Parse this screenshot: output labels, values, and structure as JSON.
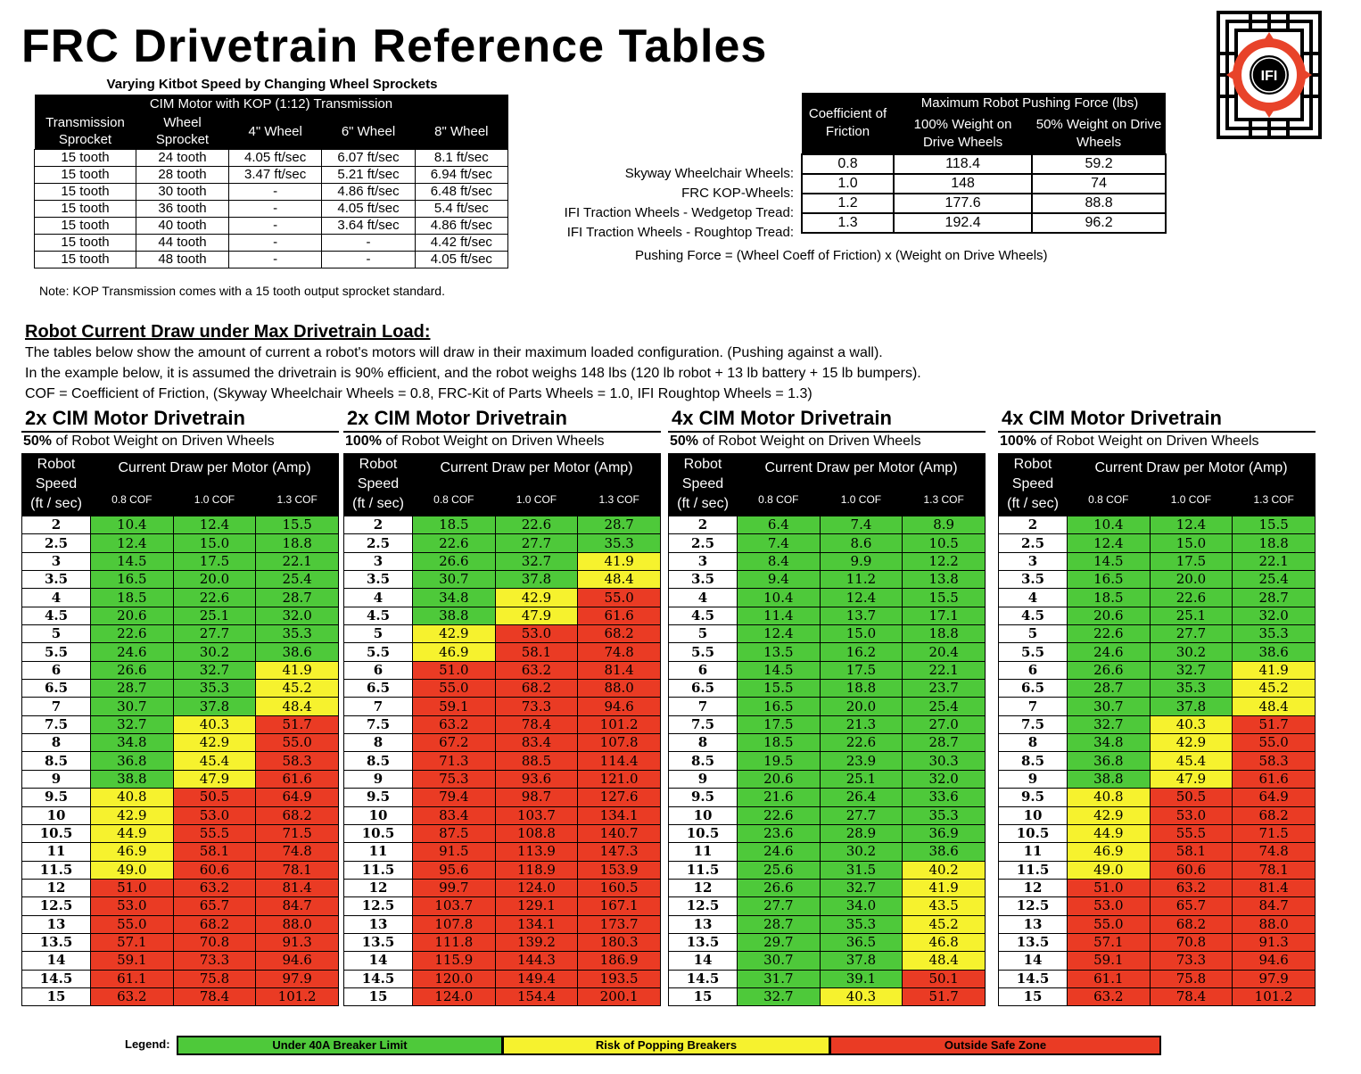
{
  "title": "FRC Drivetrain Reference Tables",
  "logo": {
    "text": "IFI",
    "icon": "ifi-logo-icon",
    "colors": {
      "ring": "#e8432a",
      "frame": "#000000"
    }
  },
  "sprocket": {
    "title": "Varying Kitbot Speed by Changing Wheel Sprockets",
    "caption": "CIM Motor with KOP (1:12) Transmission",
    "headers": [
      "Transmission Sprocket",
      "Wheel Sprocket",
      "4\" Wheel",
      "6\" Wheel",
      "8\" Wheel"
    ],
    "rows": [
      [
        "15 tooth",
        "24 tooth",
        "4.05 ft/sec",
        "6.07 ft/sec",
        "8.1 ft/sec"
      ],
      [
        "15 tooth",
        "28 tooth",
        "3.47 ft/sec",
        "5.21 ft/sec",
        "6.94 ft/sec"
      ],
      [
        "15 tooth",
        "30 tooth",
        "-",
        "4.86 ft/sec",
        "6.48 ft/sec"
      ],
      [
        "15 tooth",
        "36 tooth",
        "-",
        "4.05 ft/sec",
        "5.4 ft/sec"
      ],
      [
        "15 tooth",
        "40 tooth",
        "-",
        "3.64 ft/sec",
        "4.86 ft/sec"
      ],
      [
        "15 tooth",
        "44 tooth",
        "-",
        "-",
        "4.42 ft/sec"
      ],
      [
        "15 tooth",
        "48 tooth",
        "-",
        "-",
        "4.05 ft/sec"
      ]
    ],
    "note": "Note: KOP Transmission comes with a 15 tooth output sprocket standard."
  },
  "pushing": {
    "cof_header": "Coefficient of Friction",
    "group_header": "Maximum Robot Pushing Force (lbs)",
    "col100": "100% Weight on Drive Wheels",
    "col50": "50% Weight on Drive Wheels",
    "rows": [
      {
        "label": "Skyway Wheelchair Wheels:",
        "cof": "0.8",
        "f100": "118.4",
        "f50": "59.2"
      },
      {
        "label": "FRC KOP-Wheels:",
        "cof": "1.0",
        "f100": "148",
        "f50": "74"
      },
      {
        "label": "IFI Traction Wheels - Wedgetop Tread:",
        "cof": "1.2",
        "f100": "177.6",
        "f50": "88.8"
      },
      {
        "label": "IFI Traction Wheels - Roughtop Tread:",
        "cof": "1.3",
        "f100": "192.4",
        "f50": "96.2"
      }
    ],
    "formula": "Pushing Force = (Wheel Coeff of Friction) x (Weight on Drive Wheels)"
  },
  "current": {
    "heading": "Robot Current Draw under Max Drivetrain Load:",
    "lines": [
      "The tables below show the amount of current a robot's motors will draw in their maximum loaded configuration.  (Pushing against a wall).",
      "In the example below, it is assumed the drivetrain is 90% efficient, and the robot weighs 148 lbs (120 lb robot + 13 lb battery + 15 lb bumpers).",
      "COF = Coefficient of Friction,  (Skyway Wheelchair Wheels = 0.8,    FRC-Kit of Parts Wheels = 1.0,   IFI Roughtop Wheels = 1.3)"
    ],
    "speed_header": [
      "Robot",
      "Speed",
      "(ft / sec)"
    ],
    "group_header": "Current Draw per Motor (Amp)",
    "cof_headers": [
      "0.8 COF",
      "1.0 COF",
      "1.3 COF"
    ],
    "speeds": [
      "2",
      "2.5",
      "3",
      "3.5",
      "4",
      "4.5",
      "5",
      "5.5",
      "6",
      "6.5",
      "7",
      "7.5",
      "8",
      "8.5",
      "9",
      "9.5",
      "10",
      "10.5",
      "11",
      "11.5",
      "12",
      "12.5",
      "13",
      "13.5",
      "14",
      "14.5",
      "15"
    ],
    "colors": {
      "g": "#4ec93a",
      "y": "#f6f22e",
      "r": "#ea3b24"
    },
    "panels": [
      {
        "title": "2x CIM Motor Drivetrain",
        "pct": "50%",
        "sub": " of Robot Weight on Driven Wheels",
        "values": [
          [
            "10.4",
            "12.4",
            "15.5"
          ],
          [
            "12.4",
            "15.0",
            "18.8"
          ],
          [
            "14.5",
            "17.5",
            "22.1"
          ],
          [
            "16.5",
            "20.0",
            "25.4"
          ],
          [
            "18.5",
            "22.6",
            "28.7"
          ],
          [
            "20.6",
            "25.1",
            "32.0"
          ],
          [
            "22.6",
            "27.7",
            "35.3"
          ],
          [
            "24.6",
            "30.2",
            "38.6"
          ],
          [
            "26.6",
            "32.7",
            "41.9"
          ],
          [
            "28.7",
            "35.3",
            "45.2"
          ],
          [
            "30.7",
            "37.8",
            "48.4"
          ],
          [
            "32.7",
            "40.3",
            "51.7"
          ],
          [
            "34.8",
            "42.9",
            "55.0"
          ],
          [
            "36.8",
            "45.4",
            "58.3"
          ],
          [
            "38.8",
            "47.9",
            "61.6"
          ],
          [
            "40.8",
            "50.5",
            "64.9"
          ],
          [
            "42.9",
            "53.0",
            "68.2"
          ],
          [
            "44.9",
            "55.5",
            "71.5"
          ],
          [
            "46.9",
            "58.1",
            "74.8"
          ],
          [
            "49.0",
            "60.6",
            "78.1"
          ],
          [
            "51.0",
            "63.2",
            "81.4"
          ],
          [
            "53.0",
            "65.7",
            "84.7"
          ],
          [
            "55.0",
            "68.2",
            "88.0"
          ],
          [
            "57.1",
            "70.8",
            "91.3"
          ],
          [
            "59.1",
            "73.3",
            "94.6"
          ],
          [
            "61.1",
            "75.8",
            "97.9"
          ],
          [
            "63.2",
            "78.4",
            "101.2"
          ]
        ],
        "status": [
          "ggg",
          "ggg",
          "ggg",
          "ggg",
          "ggg",
          "ggg",
          "ggg",
          "ggg",
          "ggy",
          "ggy",
          "ggy",
          "gyr",
          "gyr",
          "gyr",
          "gyr",
          "yrr",
          "yrr",
          "yrr",
          "yrr",
          "yrr",
          "rrr",
          "rrr",
          "rrr",
          "rrr",
          "rrr",
          "rrr",
          "rrr"
        ]
      },
      {
        "title": "2x CIM Motor Drivetrain",
        "pct": "100%",
        "sub": " of Robot Weight on Driven Wheels",
        "values": [
          [
            "18.5",
            "22.6",
            "28.7"
          ],
          [
            "22.6",
            "27.7",
            "35.3"
          ],
          [
            "26.6",
            "32.7",
            "41.9"
          ],
          [
            "30.7",
            "37.8",
            "48.4"
          ],
          [
            "34.8",
            "42.9",
            "55.0"
          ],
          [
            "38.8",
            "47.9",
            "61.6"
          ],
          [
            "42.9",
            "53.0",
            "68.2"
          ],
          [
            "46.9",
            "58.1",
            "74.8"
          ],
          [
            "51.0",
            "63.2",
            "81.4"
          ],
          [
            "55.0",
            "68.2",
            "88.0"
          ],
          [
            "59.1",
            "73.3",
            "94.6"
          ],
          [
            "63.2",
            "78.4",
            "101.2"
          ],
          [
            "67.2",
            "83.4",
            "107.8"
          ],
          [
            "71.3",
            "88.5",
            "114.4"
          ],
          [
            "75.3",
            "93.6",
            "121.0"
          ],
          [
            "79.4",
            "98.7",
            "127.6"
          ],
          [
            "83.4",
            "103.7",
            "134.1"
          ],
          [
            "87.5",
            "108.8",
            "140.7"
          ],
          [
            "91.5",
            "113.9",
            "147.3"
          ],
          [
            "95.6",
            "118.9",
            "153.9"
          ],
          [
            "99.7",
            "124.0",
            "160.5"
          ],
          [
            "103.7",
            "129.1",
            "167.1"
          ],
          [
            "107.8",
            "134.1",
            "173.7"
          ],
          [
            "111.8",
            "139.2",
            "180.3"
          ],
          [
            "115.9",
            "144.3",
            "186.9"
          ],
          [
            "120.0",
            "149.4",
            "193.5"
          ],
          [
            "124.0",
            "154.4",
            "200.1"
          ]
        ],
        "status": [
          "ggg",
          "ggg",
          "ggy",
          "ggy",
          "gyr",
          "gyr",
          "yrr",
          "yrr",
          "rrr",
          "rrr",
          "rrr",
          "rrr",
          "rrr",
          "rrr",
          "rrr",
          "rrr",
          "rrr",
          "rrr",
          "rrr",
          "rrr",
          "rrr",
          "rrr",
          "rrr",
          "rrr",
          "rrr",
          "rrr",
          "rrr"
        ]
      },
      {
        "title": "4x CIM Motor Drivetrain",
        "pct": "50%",
        "sub": " of Robot Weight on Driven Wheels",
        "values": [
          [
            "6.4",
            "7.4",
            "8.9"
          ],
          [
            "7.4",
            "8.6",
            "10.5"
          ],
          [
            "8.4",
            "9.9",
            "12.2"
          ],
          [
            "9.4",
            "11.2",
            "13.8"
          ],
          [
            "10.4",
            "12.4",
            "15.5"
          ],
          [
            "11.4",
            "13.7",
            "17.1"
          ],
          [
            "12.4",
            "15.0",
            "18.8"
          ],
          [
            "13.5",
            "16.2",
            "20.4"
          ],
          [
            "14.5",
            "17.5",
            "22.1"
          ],
          [
            "15.5",
            "18.8",
            "23.7"
          ],
          [
            "16.5",
            "20.0",
            "25.4"
          ],
          [
            "17.5",
            "21.3",
            "27.0"
          ],
          [
            "18.5",
            "22.6",
            "28.7"
          ],
          [
            "19.5",
            "23.9",
            "30.3"
          ],
          [
            "20.6",
            "25.1",
            "32.0"
          ],
          [
            "21.6",
            "26.4",
            "33.6"
          ],
          [
            "22.6",
            "27.7",
            "35.3"
          ],
          [
            "23.6",
            "28.9",
            "36.9"
          ],
          [
            "24.6",
            "30.2",
            "38.6"
          ],
          [
            "25.6",
            "31.5",
            "40.2"
          ],
          [
            "26.6",
            "32.7",
            "41.9"
          ],
          [
            "27.7",
            "34.0",
            "43.5"
          ],
          [
            "28.7",
            "35.3",
            "45.2"
          ],
          [
            "29.7",
            "36.5",
            "46.8"
          ],
          [
            "30.7",
            "37.8",
            "48.4"
          ],
          [
            "31.7",
            "39.1",
            "50.1"
          ],
          [
            "32.7",
            "40.3",
            "51.7"
          ]
        ],
        "status": [
          "ggg",
          "ggg",
          "ggg",
          "ggg",
          "ggg",
          "ggg",
          "ggg",
          "ggg",
          "ggg",
          "ggg",
          "ggg",
          "ggg",
          "ggg",
          "ggg",
          "ggg",
          "ggg",
          "ggg",
          "ggg",
          "ggg",
          "ggy",
          "ggy",
          "ggy",
          "ggy",
          "ggy",
          "ggy",
          "ggr",
          "gyr"
        ]
      },
      {
        "title": "4x CIM Motor Drivetrain",
        "pct": "100%",
        "sub": " of Robot Weight on Driven Wheels",
        "values": [
          [
            "10.4",
            "12.4",
            "15.5"
          ],
          [
            "12.4",
            "15.0",
            "18.8"
          ],
          [
            "14.5",
            "17.5",
            "22.1"
          ],
          [
            "16.5",
            "20.0",
            "25.4"
          ],
          [
            "18.5",
            "22.6",
            "28.7"
          ],
          [
            "20.6",
            "25.1",
            "32.0"
          ],
          [
            "22.6",
            "27.7",
            "35.3"
          ],
          [
            "24.6",
            "30.2",
            "38.6"
          ],
          [
            "26.6",
            "32.7",
            "41.9"
          ],
          [
            "28.7",
            "35.3",
            "45.2"
          ],
          [
            "30.7",
            "37.8",
            "48.4"
          ],
          [
            "32.7",
            "40.3",
            "51.7"
          ],
          [
            "34.8",
            "42.9",
            "55.0"
          ],
          [
            "36.8",
            "45.4",
            "58.3"
          ],
          [
            "38.8",
            "47.9",
            "61.6"
          ],
          [
            "40.8",
            "50.5",
            "64.9"
          ],
          [
            "42.9",
            "53.0",
            "68.2"
          ],
          [
            "44.9",
            "55.5",
            "71.5"
          ],
          [
            "46.9",
            "58.1",
            "74.8"
          ],
          [
            "49.0",
            "60.6",
            "78.1"
          ],
          [
            "51.0",
            "63.2",
            "81.4"
          ],
          [
            "53.0",
            "65.7",
            "84.7"
          ],
          [
            "55.0",
            "68.2",
            "88.0"
          ],
          [
            "57.1",
            "70.8",
            "91.3"
          ],
          [
            "59.1",
            "73.3",
            "94.6"
          ],
          [
            "61.1",
            "75.8",
            "97.9"
          ],
          [
            "63.2",
            "78.4",
            "101.2"
          ]
        ],
        "status": [
          "ggg",
          "ggg",
          "ggg",
          "ggg",
          "ggg",
          "ggg",
          "ggg",
          "ggg",
          "ggy",
          "ggy",
          "ggy",
          "gyr",
          "gyr",
          "gyr",
          "gyr",
          "yrr",
          "yrr",
          "yrr",
          "yrr",
          "yrr",
          "rrr",
          "rrr",
          "rrr",
          "rrr",
          "rrr",
          "rrr",
          "rrr"
        ]
      }
    ]
  },
  "legend": {
    "label": "Legend:",
    "items": [
      {
        "text": "Under 40A Breaker Limit",
        "color": "#4ec93a"
      },
      {
        "text": "Risk of Popping Breakers",
        "color": "#f6f22e"
      },
      {
        "text": "Outside Safe Zone",
        "color": "#ea3b24"
      }
    ]
  }
}
